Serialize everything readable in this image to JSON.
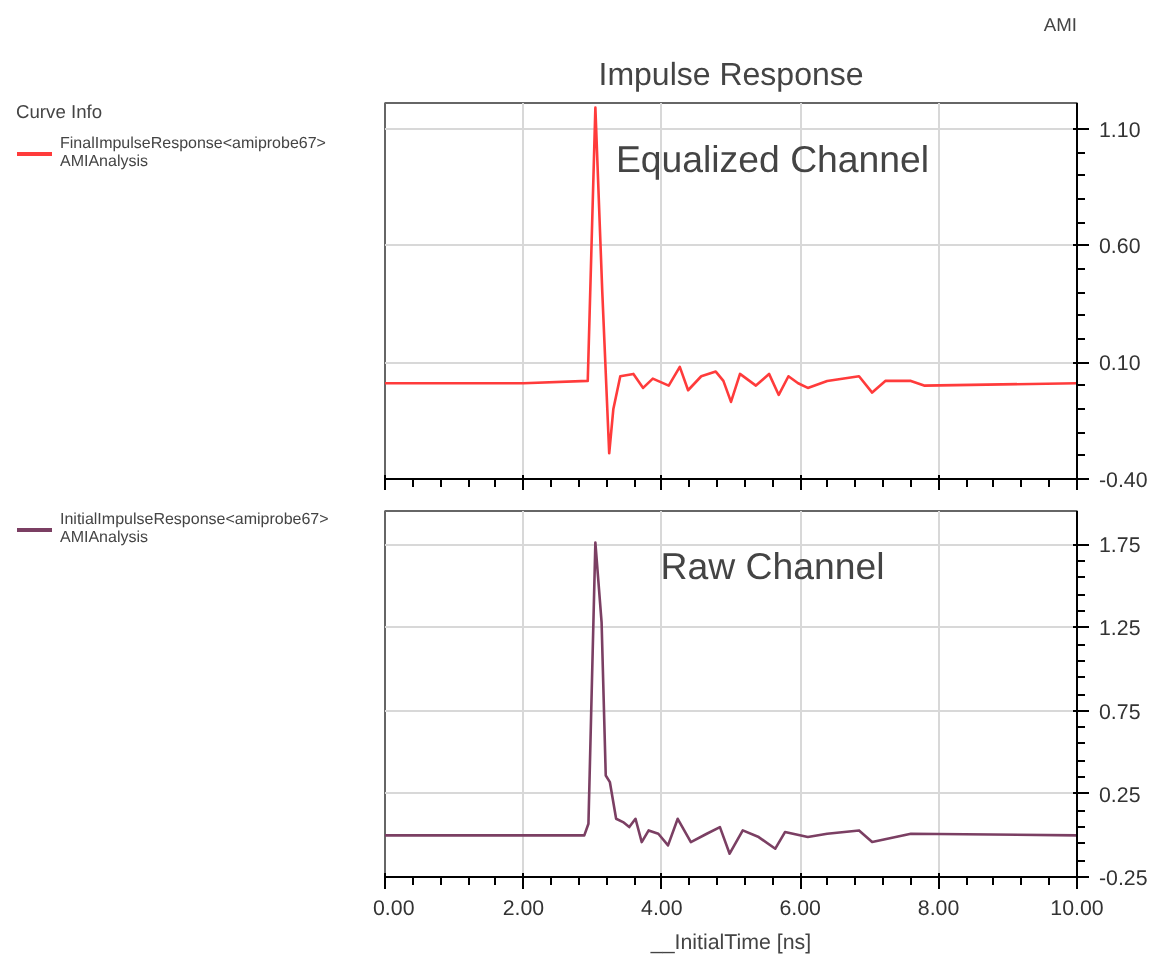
{
  "chart_data": [
    {
      "type": "line",
      "title": "Impulse Response",
      "legend_title": "Curve Info",
      "legend": "left",
      "grid": true,
      "tick_labels": "y",
      "annotations": [
        "Equalized Channel",
        "AMI"
      ],
      "xlim": [
        0,
        10
      ],
      "xticks": [
        0,
        2,
        4,
        6,
        8,
        10
      ],
      "ylim": [
        -0.4,
        1.21
      ],
      "yticks": [
        {
          "value": -0.4,
          "label": "-0.40"
        },
        {
          "value": 0.1,
          "label": "0.10"
        },
        {
          "value": 0.6,
          "label": "0.60"
        },
        {
          "value": 1.1,
          "label": "1.10"
        }
      ],
      "series": [
        {
          "name": "FinalImpulseResponse<amiprobe67> AMIAnalysis",
          "color": "#ff3b3b",
          "x": [
            0,
            2.0,
            2.93,
            3.04,
            3.14,
            3.24,
            3.3,
            3.4,
            3.59,
            3.73,
            3.87,
            4.1,
            4.26,
            4.38,
            4.57,
            4.78,
            4.89,
            5.0,
            5.13,
            5.36,
            5.55,
            5.69,
            5.83,
            5.97,
            6.11,
            6.39,
            6.85,
            7.04,
            7.23,
            7.6,
            7.79,
            10
          ],
          "values": [
            0.01,
            0.01,
            0.02,
            1.19,
            0.4,
            -0.29,
            -0.1,
            0.04,
            0.05,
            -0.01,
            0.03,
            0.0,
            0.08,
            -0.02,
            0.04,
            0.06,
            0.02,
            -0.07,
            0.05,
            0.0,
            0.05,
            -0.04,
            0.04,
            0.01,
            -0.01,
            0.02,
            0.04,
            -0.03,
            0.02,
            0.02,
            0.0,
            0.01
          ]
        }
      ]
    },
    {
      "type": "line",
      "legend": "left",
      "grid": true,
      "xlabel": "__InitialTime [ns]",
      "annotations": [
        "Raw Channel"
      ],
      "xlim": [
        0,
        10
      ],
      "xticks": [
        {
          "value": 0,
          "label": "0.00"
        },
        {
          "value": 2,
          "label": "2.00"
        },
        {
          "value": 4,
          "label": "4.00"
        },
        {
          "value": 6,
          "label": "6.00"
        },
        {
          "value": 8,
          "label": "8.00"
        },
        {
          "value": 10,
          "label": "10.00"
        }
      ],
      "ylim": [
        -0.25,
        1.95
      ],
      "yticks": [
        -0.25,
        0.25,
        0.75,
        1.25,
        1.75
      ],
      "series": [
        {
          "name": "InitialImpulseResponse<amiprobe67> AMIAnalysis",
          "color": "#7b3f63",
          "x": [
            0,
            2.88,
            2.94,
            3.04,
            3.13,
            3.19,
            3.25,
            3.34,
            3.44,
            3.53,
            3.62,
            3.71,
            3.81,
            3.95,
            4.09,
            4.23,
            4.42,
            4.65,
            4.84,
            4.98,
            5.17,
            5.4,
            5.64,
            5.78,
            6.11,
            6.39,
            6.85,
            7.04,
            7.6,
            10
          ],
          "values": [
            0,
            0,
            0.07,
            1.76,
            1.28,
            0.36,
            0.32,
            0.1,
            0.08,
            0.05,
            0.1,
            -0.04,
            0.03,
            0.01,
            -0.06,
            0.1,
            -0.04,
            0.01,
            0.05,
            -0.11,
            0.03,
            -0.01,
            -0.08,
            0.02,
            -0.01,
            0.01,
            0.03,
            -0.04,
            0.01,
            0
          ]
        }
      ]
    }
  ]
}
